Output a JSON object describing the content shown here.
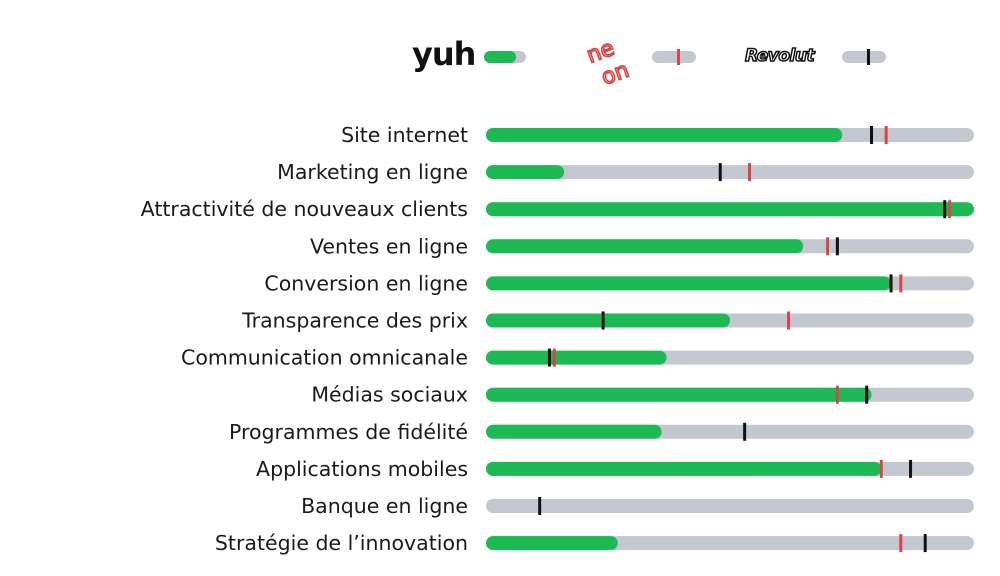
{
  "legend": {
    "yuh_label": "yuh",
    "neon_label": "neon",
    "revolut_label": "Revolut"
  },
  "colors": {
    "yuh": "#1db954",
    "neon": "#d94545",
    "revolut": "#111111",
    "track": "#c3c8d0"
  },
  "chart_data": {
    "type": "bar",
    "orientation": "horizontal",
    "xlim": [
      0,
      100
    ],
    "categories": [
      "Site internet",
      "Marketing en ligne",
      "Attractivité de nouveaux clients",
      "Ventes en ligne",
      "Conversion en ligne",
      "Transparence des prix",
      "Communication omnicanale",
      "Médias sociaux",
      "Programmes de fidélité",
      "Applications mobiles",
      "Banque en ligne",
      "Stratégie de l’innovation"
    ],
    "series": [
      {
        "name": "yuh",
        "style": "bar",
        "values": [
          73,
          16,
          100,
          65,
          83,
          50,
          37,
          79,
          36,
          81,
          0,
          27
        ]
      },
      {
        "name": "neon",
        "style": "marker",
        "values": [
          82,
          54,
          95,
          70,
          85,
          62,
          14,
          72,
          null,
          81,
          null,
          85
        ]
      },
      {
        "name": "Revolut",
        "style": "marker",
        "values": [
          79,
          48,
          94,
          72,
          83,
          24,
          13,
          78,
          53,
          87,
          11,
          90
        ]
      }
    ]
  }
}
